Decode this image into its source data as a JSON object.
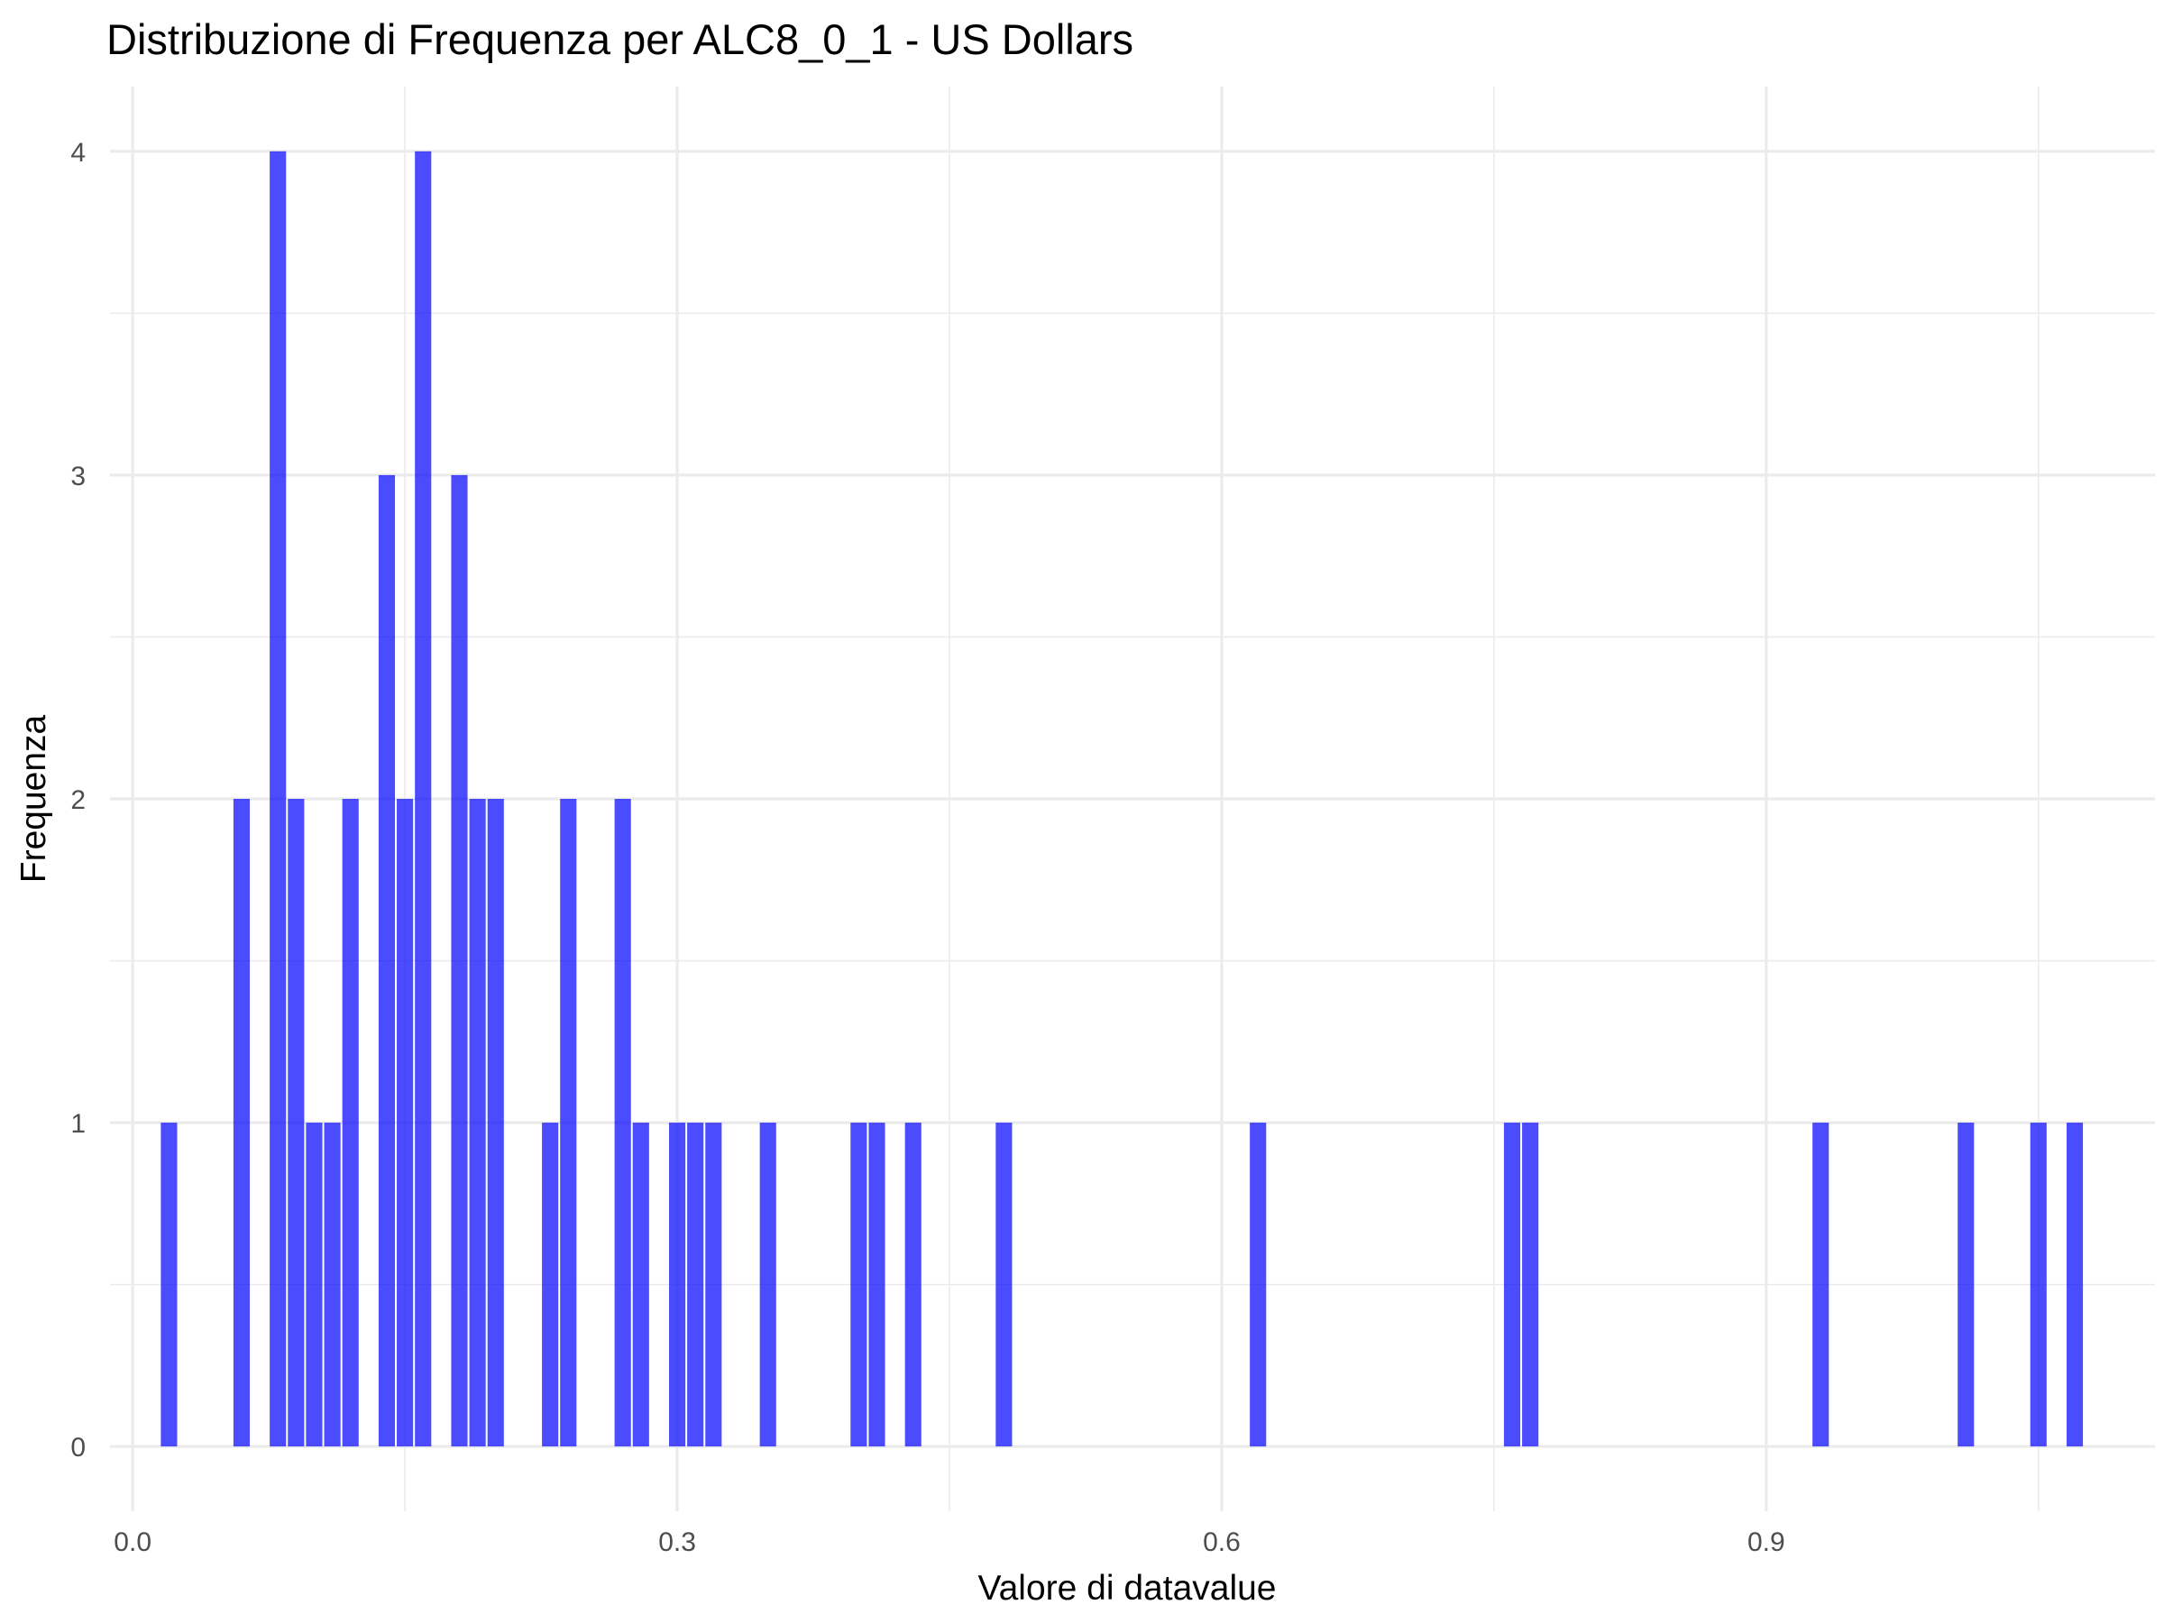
{
  "chart_data": {
    "type": "bar",
    "title": "Distribuzione di Frequenza per ALC8_0_1 - US Dollars",
    "xlabel": "Valore di datavalue",
    "ylabel": "Frequenza",
    "xlim": [
      -0.0125,
      1.1142
    ],
    "ylim": [
      -0.2,
      4.2
    ],
    "x_ticks": [
      0.0,
      0.3,
      0.6,
      0.9
    ],
    "x_tick_labels": [
      "0.0",
      "0.3",
      "0.6",
      "0.9"
    ],
    "y_ticks": [
      0,
      1,
      2,
      3,
      4
    ],
    "y_tick_labels": [
      "0",
      "1",
      "2",
      "3",
      "4"
    ],
    "bin_width": 0.01,
    "grid": true,
    "legend": "none",
    "bar_color": "#0000FF",
    "bar_opacity": 0.7,
    "bins": [
      {
        "x": 0.02,
        "count": 1
      },
      {
        "x": 0.06,
        "count": 2
      },
      {
        "x": 0.08,
        "count": 4
      },
      {
        "x": 0.09,
        "count": 2
      },
      {
        "x": 0.1,
        "count": 1
      },
      {
        "x": 0.11,
        "count": 1
      },
      {
        "x": 0.12,
        "count": 2
      },
      {
        "x": 0.14,
        "count": 3
      },
      {
        "x": 0.15,
        "count": 2
      },
      {
        "x": 0.16,
        "count": 4
      },
      {
        "x": 0.18,
        "count": 3
      },
      {
        "x": 0.19,
        "count": 2
      },
      {
        "x": 0.2,
        "count": 2
      },
      {
        "x": 0.23,
        "count": 1
      },
      {
        "x": 0.24,
        "count": 2
      },
      {
        "x": 0.27,
        "count": 2
      },
      {
        "x": 0.28,
        "count": 1
      },
      {
        "x": 0.3,
        "count": 1
      },
      {
        "x": 0.31,
        "count": 1
      },
      {
        "x": 0.32,
        "count": 1
      },
      {
        "x": 0.35,
        "count": 1
      },
      {
        "x": 0.4,
        "count": 1
      },
      {
        "x": 0.41,
        "count": 1
      },
      {
        "x": 0.43,
        "count": 1
      },
      {
        "x": 0.48,
        "count": 1
      },
      {
        "x": 0.62,
        "count": 1
      },
      {
        "x": 0.76,
        "count": 1
      },
      {
        "x": 0.77,
        "count": 1
      },
      {
        "x": 0.93,
        "count": 1
      },
      {
        "x": 1.01,
        "count": 1
      },
      {
        "x": 1.05,
        "count": 1
      },
      {
        "x": 1.07,
        "count": 1
      }
    ]
  }
}
